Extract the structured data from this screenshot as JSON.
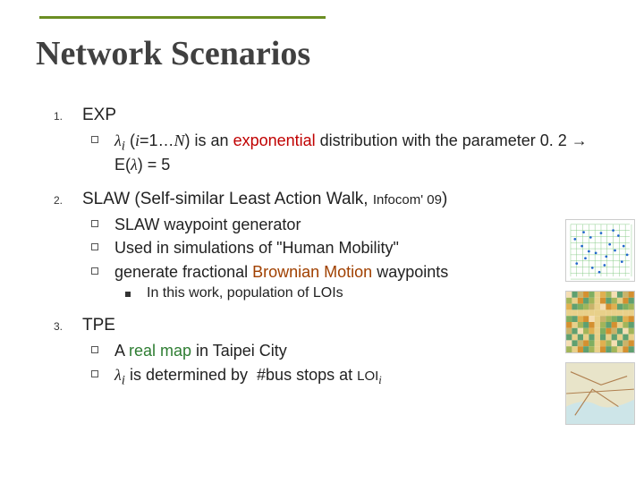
{
  "accent_color": "#6b8e23",
  "title": "Network Scenarios",
  "items": [
    {
      "num": "1.",
      "label": "EXP",
      "subs": [
        {
          "html": "<span class='italic'>λ<sub>i</sub></span> (<span class='italic'>i</span>=1…<span class='italic'>N</span>) is an <span class='hl-exp'>exponential</span> distribution with the parameter 0. 2 <span class='arrow'>→</span> E(<span class='italic'>λ</span>) = 5"
        }
      ]
    },
    {
      "num": "2.",
      "label_html": "SLAW (Self-similar Least Action Walk, <span style='font-size:15px'>Infocom' 09</span>)",
      "subs": [
        {
          "text": "SLAW waypoint generator"
        },
        {
          "text": "Used in simulations of \"Human Mobility\""
        },
        {
          "html": "generate fractional <span class='hl-brown'>Brownian Motion</span> waypoints",
          "subs": [
            {
              "text": "In this work, population of LOIs"
            }
          ]
        }
      ]
    },
    {
      "num": "3.",
      "label": "TPE",
      "subs": [
        {
          "html": "A <span class='hl-real'>real map</span> in Taipei City"
        },
        {
          "html": "<span class='italic'>λ<sub>i</sub></span> is determined by &nbsp;#bus stops at <span style='font-size:15px'>LOI<span class='italic'><sub>i</sub></span></span>"
        }
      ]
    }
  ],
  "thumbs": {
    "scatter": {
      "bg": "#ffffff",
      "grid": "#88cc88",
      "dot": "#2266cc",
      "points": [
        [
          12,
          50
        ],
        [
          18,
          30
        ],
        [
          22,
          44
        ],
        [
          28,
          20
        ],
        [
          34,
          38
        ],
        [
          40,
          15
        ],
        [
          46,
          42
        ],
        [
          50,
          28
        ],
        [
          56,
          35
        ],
        [
          60,
          18
        ],
        [
          64,
          48
        ],
        [
          30,
          55
        ],
        [
          44,
          52
        ],
        [
          20,
          14
        ],
        [
          54,
          12
        ],
        [
          66,
          30
        ],
        [
          38,
          60
        ],
        [
          10,
          22
        ],
        [
          70,
          40
        ],
        [
          26,
          36
        ]
      ]
    },
    "heatmap": {
      "cols": 12,
      "rows": 10,
      "palette": [
        "#f5deb3",
        "#e8d08a",
        "#c9b36a",
        "#a2b55a",
        "#7fae60",
        "#5fa070",
        "#e0b050",
        "#d49030"
      ]
    },
    "map": {
      "land": "#e8e4c9",
      "water": "#cde5e8",
      "road": "#b08050"
    }
  }
}
